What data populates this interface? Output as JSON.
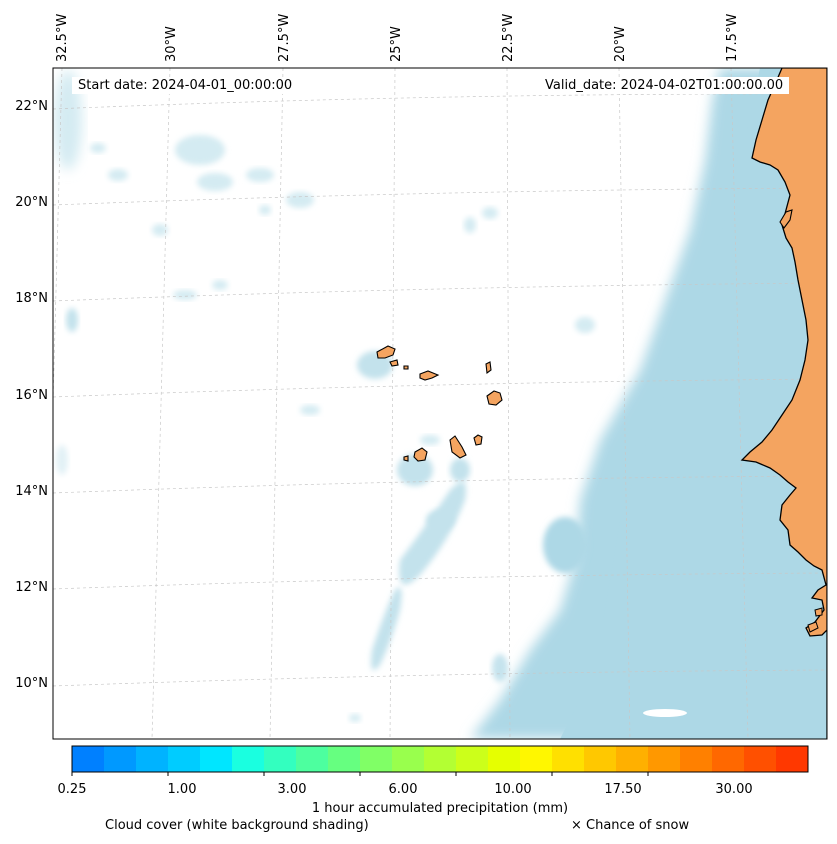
{
  "info": {
    "start_date": "Start date: 2024-04-01_00:00:00",
    "valid_date": "Valid_date: 2024-04-02T01:00:00.00"
  },
  "axes": {
    "lon_labels": [
      "32.5°W",
      "30°W",
      "27.5°W",
      "25°W",
      "22.5°W",
      "20°W",
      "17.5°W"
    ],
    "lat_labels": [
      "22°N",
      "20°N",
      "18°N",
      "16°N",
      "14°N",
      "12°N",
      "10°N"
    ]
  },
  "colorbar": {
    "title": "1 hour accumulated precipitation (mm)",
    "tick_labels": [
      "0.25",
      "1.00",
      "3.00",
      "6.00",
      "10.00",
      "17.50",
      "30.00"
    ],
    "colors": [
      "#0080ff",
      "#0099ff",
      "#00b3ff",
      "#00ccff",
      "#00e6ff",
      "#1affe0",
      "#33ffbf",
      "#4dff9f",
      "#66ff80",
      "#80ff66",
      "#99ff4d",
      "#b3ff33",
      "#ccff1a",
      "#e6ff00",
      "#fff700",
      "#ffe000",
      "#ffc800",
      "#ffb000",
      "#ff9800",
      "#ff8000",
      "#ff6800",
      "#ff5000",
      "#ff3800"
    ]
  },
  "legend": {
    "cloud_cover": "Cloud cover (white background shading)",
    "snow": "× Chance of snow"
  },
  "colors": {
    "land": "#f4a460",
    "cloud": "#add8e6",
    "ocean": "#ffffff"
  }
}
